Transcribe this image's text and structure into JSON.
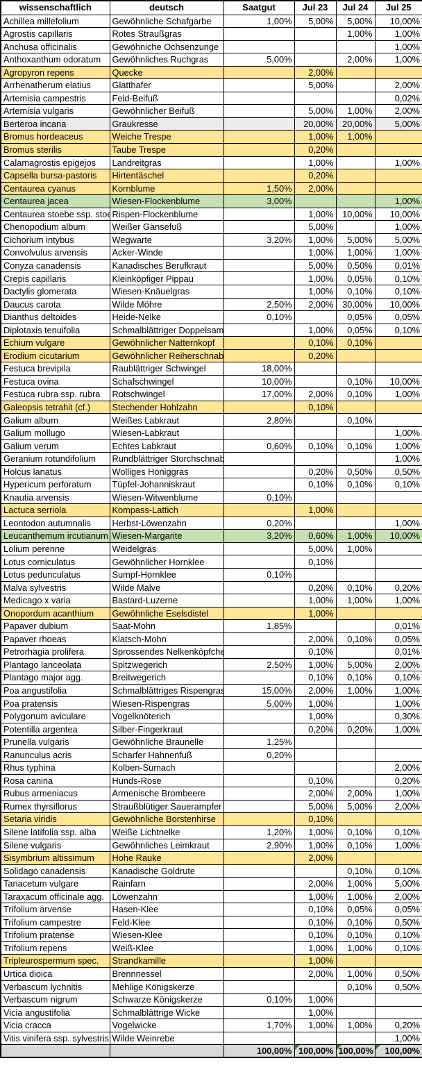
{
  "header": {
    "columns": [
      "wissenschaftlich",
      "deutsch",
      "Saatgut",
      "Jul 23",
      "Jul 24",
      "Jul 25"
    ]
  },
  "colors": {
    "highlight_yellow": "#FFE596",
    "highlight_green": "#C6E0B4",
    "row_gray": "#ECECEC",
    "total_gray": "#D9D9D9",
    "grid_black": "#000000",
    "flag_green": "#2E7D32"
  },
  "rows": [
    {
      "c": [
        "Achillea millefolium",
        "Gewöhnliche Schafgarbe",
        "1,00%",
        "5,00%",
        "5,00%",
        "10,00%"
      ],
      "hl": ""
    },
    {
      "c": [
        "Agrostis capillaris",
        "Rotes Straußgras",
        "",
        "",
        "1,00%",
        "1,00%"
      ],
      "hl": ""
    },
    {
      "c": [
        "Anchusa officinalis",
        "Gewöhniche Ochsenzunge",
        "",
        "",
        "",
        "1,00%"
      ],
      "hl": ""
    },
    {
      "c": [
        "Anthoxanthum odoratum",
        "Gewöhnliches Ruchgras",
        "5,00%",
        "",
        "2,00%",
        "1,00%"
      ],
      "hl": ""
    },
    {
      "c": [
        "Agropyron repens",
        "Quecke",
        "",
        "2,00%",
        "",
        ""
      ],
      "hl": "yellow"
    },
    {
      "c": [
        "Arrhenatherum elatius",
        "Glatthafer",
        "",
        "5,00%",
        "",
        "2,00%"
      ],
      "hl": ""
    },
    {
      "c": [
        "Artemisia campestris",
        "Feld-Beifuß",
        "",
        "",
        "",
        "0,02%"
      ],
      "hl": ""
    },
    {
      "c": [
        "Artemisia vulgaris",
        "Gewöhnlicher Beifuß",
        "",
        "5,00%",
        "1,00%",
        "2,00%"
      ],
      "hl": ""
    },
    {
      "c": [
        "Berteroa incana",
        "Graukresse",
        "",
        "20,00%",
        "20,00%",
        "5,00%"
      ],
      "hl": "gray"
    },
    {
      "c": [
        "Bromus hordeaceus",
        "Weiche Trespe",
        "",
        "1,00%",
        "1,00%",
        ""
      ],
      "hl": "yellow"
    },
    {
      "c": [
        "Bromus sterilis",
        "Taube Trespe",
        "",
        "0,20%",
        "",
        ""
      ],
      "hl": "yellow"
    },
    {
      "c": [
        "Calamagrostis epigejos",
        "Landreitgras",
        "",
        "1,00%",
        "",
        "1,00%"
      ],
      "hl": ""
    },
    {
      "c": [
        "Capsella bursa-pastoris",
        "Hirtentäschel",
        "",
        "0,20%",
        "",
        ""
      ],
      "hl": "yellow"
    },
    {
      "c": [
        "Centaurea cyanus",
        "Kornblume",
        "1,50%",
        "2,00%",
        "",
        ""
      ],
      "hl": "yellow"
    },
    {
      "c": [
        "Centaurea jacea",
        "Wiesen-Flockenblume",
        "3,00%",
        "",
        "",
        "1,00%"
      ],
      "hl": "green"
    },
    {
      "c": [
        "Centaurea stoebe ssp. stoebe",
        "Rispen-Flockenblume",
        "",
        "1,00%",
        "10,00%",
        "10,00%"
      ],
      "hl": ""
    },
    {
      "c": [
        "Chenopodium album",
        "Weißer Gänsefuß",
        "",
        "5,00%",
        "",
        "1,00%"
      ],
      "hl": ""
    },
    {
      "c": [
        "Cichorium intybus",
        "Wegwarte",
        "3,20%",
        "1,00%",
        "5,00%",
        "5,00%"
      ],
      "hl": ""
    },
    {
      "c": [
        "Convolvulus arvensis",
        "Acker-Winde",
        "",
        "1,00%",
        "1,00%",
        "1,00%"
      ],
      "hl": ""
    },
    {
      "c": [
        "Conyza canadensis",
        "Kanadisches Berufkraut",
        "",
        "5,00%",
        "0,50%",
        "0,01%"
      ],
      "hl": ""
    },
    {
      "c": [
        "Crepis capillaris",
        "Kleinköpfiger Pippau",
        "",
        "1,00%",
        "0,05%",
        "0,10%"
      ],
      "hl": ""
    },
    {
      "c": [
        "Dactylis glomerata",
        "Wiesen-Knäuelgras",
        "",
        "1,00%",
        "0,10%",
        "0,10%"
      ],
      "hl": ""
    },
    {
      "c": [
        "Daucus carota",
        "Wilde Möhre",
        "2,50%",
        "2,00%",
        "30,00%",
        "10,00%"
      ],
      "hl": ""
    },
    {
      "c": [
        "Dianthus deltoides",
        "Heide-Nelke",
        "0,10%",
        "",
        "0,05%",
        "0,05%"
      ],
      "hl": ""
    },
    {
      "c": [
        "Diplotaxis tenuifolia",
        "Schmalblättriger Doppelsame",
        "",
        "1,00%",
        "0,05%",
        "0,10%"
      ],
      "hl": ""
    },
    {
      "c": [
        "Echium vulgare",
        "Gewöhnlicher Natternkopf",
        "",
        "0,10%",
        "0,10%",
        ""
      ],
      "hl": "yellow"
    },
    {
      "c": [
        "Erodium cicutarium",
        "Gewöhnlicher Reiherschnabel",
        "",
        "0,20%",
        "",
        ""
      ],
      "hl": "yellow"
    },
    {
      "c": [
        "Festuca brevipila",
        "Raublättriger Schwingel",
        "18,00%",
        "",
        "",
        ""
      ],
      "hl": ""
    },
    {
      "c": [
        "Festuca ovina",
        "Schafschwingel",
        "10,00%",
        "",
        "0,10%",
        "10,00%"
      ],
      "hl": ""
    },
    {
      "c": [
        "Festuca rubra ssp. rubra",
        "Rotschwingel",
        "17,00%",
        "2,00%",
        "0,10%",
        "1,00%"
      ],
      "hl": ""
    },
    {
      "c": [
        "Galeopsis tetrahit (cf.)",
        "Stechender Hohlzahn",
        "",
        "0,10%",
        "",
        ""
      ],
      "hl": "yellow"
    },
    {
      "c": [
        "Galium album",
        "Weißes Labkraut",
        "2,80%",
        "",
        "0,10%",
        ""
      ],
      "hl": ""
    },
    {
      "c": [
        "Galium mollugo",
        "Wiesen-Labkraut",
        "",
        "",
        "",
        "1,00%"
      ],
      "hl": ""
    },
    {
      "c": [
        "Galium verum",
        "Echtes Labkraut",
        "0,60%",
        "0,10%",
        "0,10%",
        "1,00%"
      ],
      "hl": ""
    },
    {
      "c": [
        "Geranium rotundifolium",
        "Rundblättriger Storchschnabel",
        "",
        "",
        "",
        "1,00%"
      ],
      "hl": ""
    },
    {
      "c": [
        "Holcus lanatus",
        "Wolliges Honiggras",
        "",
        "0,20%",
        "0,50%",
        "0,50%"
      ],
      "hl": ""
    },
    {
      "c": [
        "Hypericum perforatum",
        "Tüpfel-Johanniskraut",
        "",
        "0,10%",
        "0,10%",
        "0,10%"
      ],
      "hl": ""
    },
    {
      "c": [
        "Knautia arvensis",
        "Wiesen-Witwenblume",
        "0,10%",
        "",
        "",
        ""
      ],
      "hl": ""
    },
    {
      "c": [
        "Lactuca serriola",
        "Kompass-Lattich",
        "",
        "1,00%",
        "",
        ""
      ],
      "hl": "yellow"
    },
    {
      "c": [
        "Leontodon autumnalis",
        "Herbst-Löwenzahn",
        "0,20%",
        "",
        "",
        "1,00%"
      ],
      "hl": ""
    },
    {
      "c": [
        "Leucanthemum ircutianum",
        "Wiesen-Margarite",
        "3,20%",
        "0,60%",
        "1,00%",
        "10,00%"
      ],
      "hl": "green"
    },
    {
      "c": [
        "Lolium perenne",
        "Weidelgras",
        "",
        "5,00%",
        "1,00%",
        ""
      ],
      "hl": ""
    },
    {
      "c": [
        "Lotus corniculatus",
        "Gewöhnlicher Hornklee",
        "",
        "0,10%",
        "",
        ""
      ],
      "hl": ""
    },
    {
      "c": [
        "Lotus pedunculatus",
        "Sumpf-Hornklee",
        "0,10%",
        "",
        "",
        ""
      ],
      "hl": ""
    },
    {
      "c": [
        "Malva sylvestris",
        "Wilde Malve",
        "",
        "0,20%",
        "0,10%",
        "0,20%"
      ],
      "hl": ""
    },
    {
      "c": [
        "Medicago x varia",
        "Bastard-Luzerne",
        "",
        "1,00%",
        "1,00%",
        "1,00%"
      ],
      "hl": ""
    },
    {
      "c": [
        "Onopordum acanthium",
        "Gewöhnliche Eselsdistel",
        "",
        "1,00%",
        "",
        ""
      ],
      "hl": "yellow"
    },
    {
      "c": [
        "Papaver dubium",
        "Saat-Mohn",
        "1,85%",
        "",
        "",
        "0,01%"
      ],
      "hl": ""
    },
    {
      "c": [
        "Papaver rhoeas",
        "Klatsch-Mohn",
        "",
        "2,00%",
        "0,10%",
        "0,05%"
      ],
      "hl": ""
    },
    {
      "c": [
        "Petrorhagia prolifera",
        "Sprossendes Nelkenköpfchen",
        "",
        "0,10%",
        "",
        "0,01%"
      ],
      "hl": ""
    },
    {
      "c": [
        "Plantago lanceolata",
        "Spitzwegerich",
        "2,50%",
        "1,00%",
        "5,00%",
        "2,00%"
      ],
      "hl": ""
    },
    {
      "c": [
        "Plantago major agg.",
        "Breitwegerich",
        "",
        "0,10%",
        "0,10%",
        "0,10%"
      ],
      "hl": ""
    },
    {
      "c": [
        "Poa angustifolia",
        "Schmalblättriges Rispengras",
        "15,00%",
        "2,00%",
        "1,00%",
        "1,00%"
      ],
      "hl": ""
    },
    {
      "c": [
        "Poa pratensis",
        "Wiesen-Rispengras",
        "5,00%",
        "1,00%",
        "",
        "1,00%"
      ],
      "hl": ""
    },
    {
      "c": [
        "Polygonum aviculare",
        "Vogelknöterich",
        "",
        "1,00%",
        "",
        "0,30%"
      ],
      "hl": ""
    },
    {
      "c": [
        "Potentilla argentea",
        "Silber-Fingerkraut",
        "",
        "0,20%",
        "0,20%",
        "1,00%"
      ],
      "hl": ""
    },
    {
      "c": [
        "Prunella vulgaris",
        "Gewöhnliche Braunelle",
        "1,25%",
        "",
        "",
        ""
      ],
      "hl": ""
    },
    {
      "c": [
        "Ranunculus acris",
        "Scharfer Hahnenfuß",
        "0,20%",
        "",
        "",
        ""
      ],
      "hl": ""
    },
    {
      "c": [
        "Rhus typhina",
        "Kolben-Sumach",
        "",
        "",
        "",
        "2,00%"
      ],
      "hl": ""
    },
    {
      "c": [
        "Rosa canina",
        "Hunds-Rose",
        "",
        "0,10%",
        "",
        "0,20%"
      ],
      "hl": ""
    },
    {
      "c": [
        "Rubus armeniacus",
        "Armenische Brombeere",
        "",
        "2,00%",
        "2,00%",
        "1,00%"
      ],
      "hl": ""
    },
    {
      "c": [
        "Rumex thyrsiflorus",
        "Straußblütiger Sauerampfer",
        "",
        "5,00%",
        "5,00%",
        "2,00%"
      ],
      "hl": ""
    },
    {
      "c": [
        "Setaria viridis",
        "Gewöhnliche Borstenhirse",
        "",
        "0,10%",
        "",
        ""
      ],
      "hl": "yellow"
    },
    {
      "c": [
        "Silene latifolia ssp. alba",
        "Weiße Lichtnelke",
        "1,20%",
        "1,00%",
        "0,10%",
        "0,10%"
      ],
      "hl": ""
    },
    {
      "c": [
        "Silene vulgaris",
        "Gewöhnliches Leimkraut",
        "2,90%",
        "1,00%",
        "0,10%",
        "1,00%"
      ],
      "hl": ""
    },
    {
      "c": [
        "Sisymbrium altissimum",
        "Hohe Rauke",
        "",
        "2,00%",
        "",
        ""
      ],
      "hl": "yellow"
    },
    {
      "c": [
        "Solidago canadensis",
        "Kanadische Goldrute",
        "",
        "",
        "0,10%",
        "0,10%"
      ],
      "hl": ""
    },
    {
      "c": [
        "Tanacetum vulgare",
        "Rainfarn",
        "",
        "2,00%",
        "1,00%",
        "5,00%"
      ],
      "hl": ""
    },
    {
      "c": [
        "Taraxacum officinale agg.",
        "Löwenzahn",
        "",
        "1,00%",
        "1,00%",
        "2,00%"
      ],
      "hl": ""
    },
    {
      "c": [
        "Trifolium arvense",
        "Hasen-Klee",
        "",
        "0,10%",
        "0,05%",
        "0,05%"
      ],
      "hl": ""
    },
    {
      "c": [
        "Trifolium campestre",
        "Feld-Klee",
        "",
        "0,10%",
        "0,10%",
        "0,50%"
      ],
      "hl": ""
    },
    {
      "c": [
        "Trifolium pratense",
        "Wiesen-Klee",
        "",
        "0,10%",
        "0,10%",
        "0,10%"
      ],
      "hl": ""
    },
    {
      "c": [
        "Trifolium repens",
        "Weiß-Klee",
        "",
        "1,00%",
        "1,00%",
        "0,10%"
      ],
      "hl": ""
    },
    {
      "c": [
        "Tripleurospermum spec.",
        "Strandkamille",
        "",
        "1,00%",
        "",
        ""
      ],
      "hl": "yellow"
    },
    {
      "c": [
        "Urtica dioica",
        "Brennnessel",
        "",
        "2,00%",
        "1,00%",
        "0,50%"
      ],
      "hl": ""
    },
    {
      "c": [
        "Verbascum lychnitis",
        "Mehlige Königskerze",
        "",
        "",
        "0,10%",
        "0,50%"
      ],
      "hl": ""
    },
    {
      "c": [
        "Verbascum nigrum",
        "Schwarze Königskerze",
        "0,10%",
        "1,00%",
        "",
        ""
      ],
      "hl": ""
    },
    {
      "c": [
        "Vicia angustifolia",
        "Schmalblättrige Wicke",
        "",
        "1,00%",
        "",
        ""
      ],
      "hl": ""
    },
    {
      "c": [
        "Vicia cracca",
        "Vogelwicke",
        "1,70%",
        "1,00%",
        "1,00%",
        "0,20%"
      ],
      "hl": ""
    },
    {
      "c": [
        "Vitis vinifera ssp. sylvestris",
        "Wilde Weinrebe",
        "",
        "",
        "",
        "1,00%"
      ],
      "hl": ""
    }
  ],
  "total_row": {
    "c": [
      "",
      "",
      "100,00%",
      "100,00%",
      "100,00%",
      "100,00%"
    ],
    "flags": [
      false,
      false,
      false,
      true,
      true,
      true
    ]
  }
}
